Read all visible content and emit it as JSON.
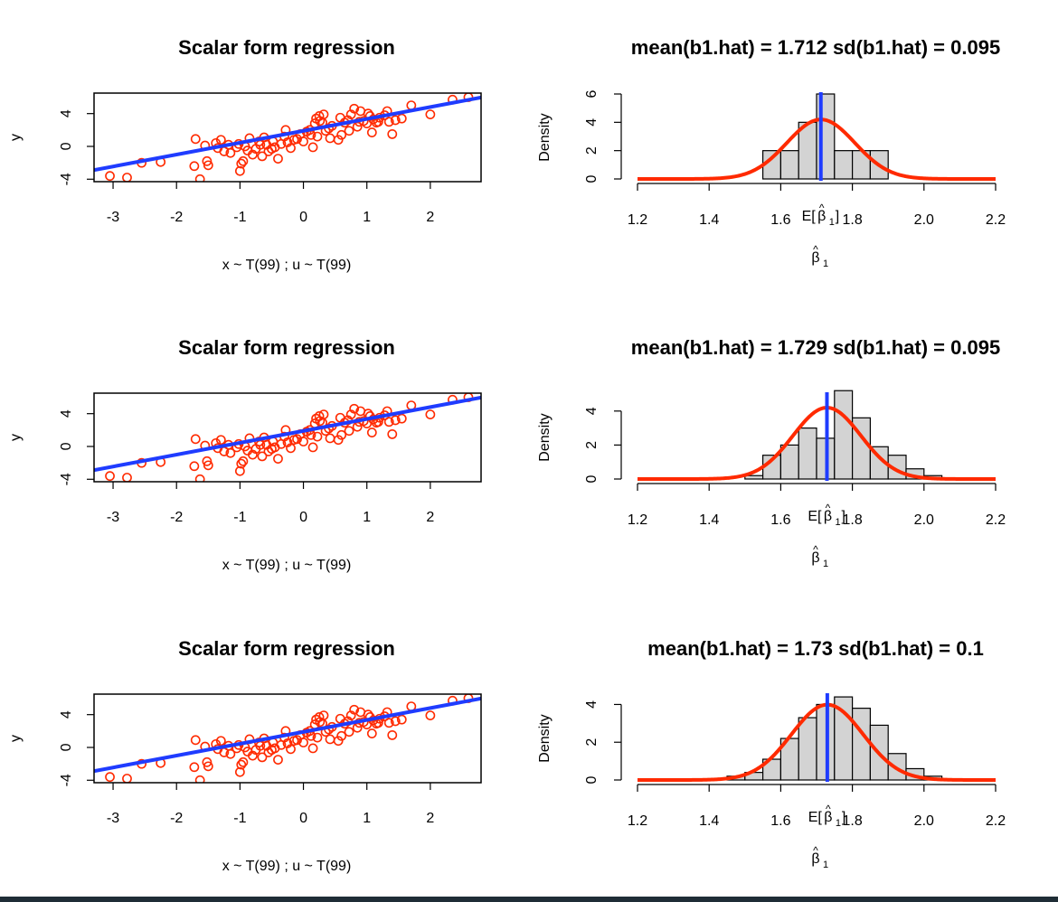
{
  "chart_data": [
    {
      "type": "scatter",
      "title": "Scalar form regression",
      "xlabel": "x ~ T(99) ; u ~ T(99)",
      "ylabel": "y",
      "xlim": [
        -3.3,
        2.8
      ],
      "ylim": [
        -4.3,
        6.5
      ],
      "xticks": [
        "-3",
        "-2",
        "-1",
        "0",
        "1",
        "2"
      ],
      "yticks": [
        "-4",
        "0",
        "4"
      ],
      "fit_line": {
        "intercept": 1.9,
        "slope": 1.45
      },
      "point_color": "#ff2a00",
      "line_color": "#1f3cff",
      "points": [
        [
          -3.05,
          -3.6
        ],
        [
          -2.78,
          -3.8
        ],
        [
          -2.55,
          -2.0
        ],
        [
          -2.25,
          -1.9
        ],
        [
          -1.72,
          -2.4
        ],
        [
          -1.7,
          0.9
        ],
        [
          -1.63,
          -4.0
        ],
        [
          -1.55,
          0.1
        ],
        [
          -1.52,
          -1.8
        ],
        [
          -1.5,
          -2.3
        ],
        [
          -1.35,
          -0.2
        ],
        [
          -1.3,
          0.8
        ],
        [
          -1.25,
          -0.6
        ],
        [
          -1.18,
          0.2
        ],
        [
          -1.15,
          -0.8
        ],
        [
          -1.05,
          -0.1
        ],
        [
          -1.02,
          0.3
        ],
        [
          -1.0,
          -3.0
        ],
        [
          -0.98,
          -2.1
        ],
        [
          -0.95,
          -1.8
        ],
        [
          -0.92,
          0.0
        ],
        [
          -0.88,
          -0.5
        ],
        [
          -0.8,
          -1.0
        ],
        [
          -0.75,
          -0.3
        ],
        [
          -0.7,
          0.6
        ],
        [
          -0.65,
          -1.2
        ],
        [
          -0.62,
          1.1
        ],
        [
          -0.58,
          0.2
        ],
        [
          -0.55,
          -0.6
        ],
        [
          -0.5,
          -0.3
        ],
        [
          -0.45,
          -0.1
        ],
        [
          -0.4,
          -1.5
        ],
        [
          -0.35,
          0.3
        ],
        [
          -0.3,
          1.2
        ],
        [
          -0.25,
          0.5
        ],
        [
          -0.2,
          -0.2
        ],
        [
          -0.15,
          0.8
        ],
        [
          -0.1,
          0.9
        ],
        [
          -0.05,
          1.5
        ],
        [
          0.0,
          0.6
        ],
        [
          0.05,
          1.8
        ],
        [
          0.1,
          2.0
        ],
        [
          0.15,
          -0.1
        ],
        [
          0.18,
          2.8
        ],
        [
          0.2,
          3.4
        ],
        [
          0.22,
          1.2
        ],
        [
          0.25,
          3.7
        ],
        [
          0.3,
          2.9
        ],
        [
          0.32,
          3.9
        ],
        [
          0.35,
          1.9
        ],
        [
          0.4,
          2.2
        ],
        [
          0.45,
          2.5
        ],
        [
          0.55,
          0.8
        ],
        [
          0.6,
          1.4
        ],
        [
          0.65,
          2.9
        ],
        [
          0.7,
          3.2
        ],
        [
          0.72,
          1.9
        ],
        [
          0.75,
          3.9
        ],
        [
          0.8,
          4.6
        ],
        [
          0.85,
          2.4
        ],
        [
          0.9,
          4.3
        ],
        [
          0.95,
          3.1
        ],
        [
          1.0,
          2.8
        ],
        [
          1.05,
          3.7
        ],
        [
          1.08,
          1.7
        ],
        [
          1.1,
          3.3
        ],
        [
          1.15,
          2.9
        ],
        [
          1.2,
          3.5
        ],
        [
          1.28,
          3.8
        ],
        [
          1.35,
          3.0
        ],
        [
          1.4,
          1.5
        ],
        [
          1.45,
          3.2
        ],
        [
          1.55,
          3.4
        ],
        [
          1.7,
          5.0
        ],
        [
          2.0,
          3.9
        ],
        [
          2.35,
          5.7
        ],
        [
          2.6,
          6.0
        ],
        [
          -0.85,
          1.0
        ],
        [
          0.42,
          1.0
        ],
        [
          1.02,
          4.0
        ],
        [
          -1.38,
          0.4
        ],
        [
          0.58,
          3.5
        ],
        [
          -0.28,
          2.0
        ],
        [
          0.12,
          1.4
        ],
        [
          0.88,
          3.0
        ],
        [
          -0.48,
          0.6
        ],
        [
          1.18,
          3.0
        ],
        [
          0.26,
          3.1
        ],
        [
          -0.68,
          0.2
        ],
        [
          1.32,
          4.3
        ]
      ]
    },
    {
      "type": "bar",
      "title": "mean(b1.hat) = 1.712  sd(b1.hat) = 0.095",
      "xlabel": "β̂1",
      "ylabel": "Density",
      "xlim": [
        1.2,
        2.2
      ],
      "ylim": [
        0,
        6
      ],
      "xticks": [
        "1.2",
        "1.4",
        "1.6",
        "1.8",
        "2.0",
        "2.2"
      ],
      "yticks": [
        "0",
        "2",
        "4",
        "6"
      ],
      "bin_edges": [
        1.55,
        1.6,
        1.65,
        1.7,
        1.75,
        1.8,
        1.85,
        1.9
      ],
      "values": [
        2,
        2,
        4,
        6,
        2,
        2,
        2
      ],
      "mean_marker": {
        "x": 1.712,
        "label": "E[β̂1]"
      },
      "density_curve": {
        "mean": 1.712,
        "sd": 0.095
      },
      "bar_color": "#d3d3d3",
      "curve_color": "#ff2a00",
      "mean_line_color": "#1f3cff"
    },
    {
      "type": "scatter",
      "title": "Scalar form regression",
      "xlabel": "x ~ T(99) ; u ~ T(99)",
      "ylabel": "y",
      "xlim": [
        -3.3,
        2.8
      ],
      "ylim": [
        -4.3,
        6.5
      ],
      "xticks": [
        "-3",
        "-2",
        "-1",
        "0",
        "1",
        "2"
      ],
      "yticks": [
        "-4",
        "0",
        "4"
      ],
      "fit_line": {
        "intercept": 1.9,
        "slope": 1.45
      },
      "point_color": "#ff2a00",
      "line_color": "#1f3cff",
      "points": [
        [
          -3.05,
          -3.6
        ],
        [
          -2.78,
          -3.8
        ],
        [
          -2.55,
          -2.0
        ],
        [
          -2.25,
          -1.9
        ],
        [
          -1.72,
          -2.4
        ],
        [
          -1.7,
          0.9
        ],
        [
          -1.63,
          -4.0
        ],
        [
          -1.55,
          0.1
        ],
        [
          -1.52,
          -1.8
        ],
        [
          -1.5,
          -2.3
        ],
        [
          -1.35,
          -0.2
        ],
        [
          -1.3,
          0.8
        ],
        [
          -1.25,
          -0.6
        ],
        [
          -1.18,
          0.2
        ],
        [
          -1.15,
          -0.8
        ],
        [
          -1.05,
          -0.1
        ],
        [
          -1.02,
          0.3
        ],
        [
          -1.0,
          -3.0
        ],
        [
          -0.98,
          -2.1
        ],
        [
          -0.95,
          -1.8
        ],
        [
          -0.92,
          0.0
        ],
        [
          -0.88,
          -0.5
        ],
        [
          -0.8,
          -1.0
        ],
        [
          -0.75,
          -0.3
        ],
        [
          -0.7,
          0.6
        ],
        [
          -0.65,
          -1.2
        ],
        [
          -0.62,
          1.1
        ],
        [
          -0.58,
          0.2
        ],
        [
          -0.55,
          -0.6
        ],
        [
          -0.5,
          -0.3
        ],
        [
          -0.45,
          -0.1
        ],
        [
          -0.4,
          -1.5
        ],
        [
          -0.35,
          0.3
        ],
        [
          -0.3,
          1.2
        ],
        [
          -0.25,
          0.5
        ],
        [
          -0.2,
          -0.2
        ],
        [
          -0.15,
          0.8
        ],
        [
          -0.1,
          0.9
        ],
        [
          -0.05,
          1.5
        ],
        [
          0.0,
          0.6
        ],
        [
          0.05,
          1.8
        ],
        [
          0.1,
          2.0
        ],
        [
          0.15,
          -0.1
        ],
        [
          0.18,
          2.8
        ],
        [
          0.2,
          3.4
        ],
        [
          0.22,
          1.2
        ],
        [
          0.25,
          3.7
        ],
        [
          0.3,
          2.9
        ],
        [
          0.32,
          3.9
        ],
        [
          0.35,
          1.9
        ],
        [
          0.4,
          2.2
        ],
        [
          0.45,
          2.5
        ],
        [
          0.55,
          0.8
        ],
        [
          0.6,
          1.4
        ],
        [
          0.65,
          2.9
        ],
        [
          0.7,
          3.2
        ],
        [
          0.72,
          1.9
        ],
        [
          0.75,
          3.9
        ],
        [
          0.8,
          4.6
        ],
        [
          0.85,
          2.4
        ],
        [
          0.9,
          4.3
        ],
        [
          0.95,
          3.1
        ],
        [
          1.0,
          2.8
        ],
        [
          1.05,
          3.7
        ],
        [
          1.08,
          1.7
        ],
        [
          1.1,
          3.3
        ],
        [
          1.15,
          2.9
        ],
        [
          1.2,
          3.5
        ],
        [
          1.28,
          3.8
        ],
        [
          1.35,
          3.0
        ],
        [
          1.4,
          1.5
        ],
        [
          1.45,
          3.2
        ],
        [
          1.55,
          3.4
        ],
        [
          1.7,
          5.0
        ],
        [
          2.0,
          3.9
        ],
        [
          2.35,
          5.7
        ],
        [
          2.6,
          6.0
        ],
        [
          -0.85,
          1.0
        ],
        [
          0.42,
          1.0
        ],
        [
          1.02,
          4.0
        ],
        [
          -1.38,
          0.4
        ],
        [
          0.58,
          3.5
        ],
        [
          -0.28,
          2.0
        ],
        [
          0.12,
          1.4
        ],
        [
          0.88,
          3.0
        ],
        [
          -0.48,
          0.6
        ],
        [
          1.18,
          3.0
        ],
        [
          0.26,
          3.1
        ],
        [
          -0.68,
          0.2
        ],
        [
          1.32,
          4.3
        ]
      ]
    },
    {
      "type": "bar",
      "title": "mean(b1.hat) = 1.729  sd(b1.hat) = 0.095",
      "xlabel": "β̂1",
      "ylabel": "Density",
      "xlim": [
        1.2,
        2.2
      ],
      "ylim": [
        0,
        5
      ],
      "xticks": [
        "1.2",
        "1.4",
        "1.6",
        "1.8",
        "2.0",
        "2.2"
      ],
      "yticks": [
        "0",
        "2",
        "4"
      ],
      "bin_edges": [
        1.5,
        1.55,
        1.6,
        1.65,
        1.7,
        1.75,
        1.8,
        1.85,
        1.9,
        1.95,
        2.0,
        2.05
      ],
      "values": [
        0.2,
        1.4,
        2.0,
        3.0,
        2.4,
        5.2,
        3.6,
        1.9,
        1.4,
        0.6,
        0.2
      ],
      "mean_marker": {
        "x": 1.729,
        "label": "E[β̂1]"
      },
      "density_curve": {
        "mean": 1.729,
        "sd": 0.095
      },
      "bar_color": "#d3d3d3",
      "curve_color": "#ff2a00",
      "mean_line_color": "#1f3cff"
    },
    {
      "type": "scatter",
      "title": "Scalar form regression",
      "xlabel": "x ~ T(99) ; u ~ T(99)",
      "ylabel": "y",
      "xlim": [
        -3.3,
        2.8
      ],
      "ylim": [
        -4.3,
        6.5
      ],
      "xticks": [
        "-3",
        "-2",
        "-1",
        "0",
        "1",
        "2"
      ],
      "yticks": [
        "-4",
        "0",
        "4"
      ],
      "fit_line": {
        "intercept": 1.9,
        "slope": 1.45
      },
      "point_color": "#ff2a00",
      "line_color": "#1f3cff",
      "points": [
        [
          -3.05,
          -3.6
        ],
        [
          -2.78,
          -3.8
        ],
        [
          -2.55,
          -2.0
        ],
        [
          -2.25,
          -1.9
        ],
        [
          -1.72,
          -2.4
        ],
        [
          -1.7,
          0.9
        ],
        [
          -1.63,
          -4.0
        ],
        [
          -1.55,
          0.1
        ],
        [
          -1.52,
          -1.8
        ],
        [
          -1.5,
          -2.3
        ],
        [
          -1.35,
          -0.2
        ],
        [
          -1.3,
          0.8
        ],
        [
          -1.25,
          -0.6
        ],
        [
          -1.18,
          0.2
        ],
        [
          -1.15,
          -0.8
        ],
        [
          -1.05,
          -0.1
        ],
        [
          -1.02,
          0.3
        ],
        [
          -1.0,
          -3.0
        ],
        [
          -0.98,
          -2.1
        ],
        [
          -0.95,
          -1.8
        ],
        [
          -0.92,
          0.0
        ],
        [
          -0.88,
          -0.5
        ],
        [
          -0.8,
          -1.0
        ],
        [
          -0.75,
          -0.3
        ],
        [
          -0.7,
          0.6
        ],
        [
          -0.65,
          -1.2
        ],
        [
          -0.62,
          1.1
        ],
        [
          -0.58,
          0.2
        ],
        [
          -0.55,
          -0.6
        ],
        [
          -0.5,
          -0.3
        ],
        [
          -0.45,
          -0.1
        ],
        [
          -0.4,
          -1.5
        ],
        [
          -0.35,
          0.3
        ],
        [
          -0.3,
          1.2
        ],
        [
          -0.25,
          0.5
        ],
        [
          -0.2,
          -0.2
        ],
        [
          -0.15,
          0.8
        ],
        [
          -0.1,
          0.9
        ],
        [
          -0.05,
          1.5
        ],
        [
          0.0,
          0.6
        ],
        [
          0.05,
          1.8
        ],
        [
          0.1,
          2.0
        ],
        [
          0.15,
          -0.1
        ],
        [
          0.18,
          2.8
        ],
        [
          0.2,
          3.4
        ],
        [
          0.22,
          1.2
        ],
        [
          0.25,
          3.7
        ],
        [
          0.3,
          2.9
        ],
        [
          0.32,
          3.9
        ],
        [
          0.35,
          1.9
        ],
        [
          0.4,
          2.2
        ],
        [
          0.45,
          2.5
        ],
        [
          0.55,
          0.8
        ],
        [
          0.6,
          1.4
        ],
        [
          0.65,
          2.9
        ],
        [
          0.7,
          3.2
        ],
        [
          0.72,
          1.9
        ],
        [
          0.75,
          3.9
        ],
        [
          0.8,
          4.6
        ],
        [
          0.85,
          2.4
        ],
        [
          0.9,
          4.3
        ],
        [
          0.95,
          3.1
        ],
        [
          1.0,
          2.8
        ],
        [
          1.05,
          3.7
        ],
        [
          1.08,
          1.7
        ],
        [
          1.1,
          3.3
        ],
        [
          1.15,
          2.9
        ],
        [
          1.2,
          3.5
        ],
        [
          1.28,
          3.8
        ],
        [
          1.35,
          3.0
        ],
        [
          1.4,
          1.5
        ],
        [
          1.45,
          3.2
        ],
        [
          1.55,
          3.4
        ],
        [
          1.7,
          5.0
        ],
        [
          2.0,
          3.9
        ],
        [
          2.35,
          5.7
        ],
        [
          2.6,
          6.0
        ],
        [
          -0.85,
          1.0
        ],
        [
          0.42,
          1.0
        ],
        [
          1.02,
          4.0
        ],
        [
          -1.38,
          0.4
        ],
        [
          0.58,
          3.5
        ],
        [
          -0.28,
          2.0
        ],
        [
          0.12,
          1.4
        ],
        [
          0.88,
          3.0
        ],
        [
          -0.48,
          0.6
        ],
        [
          1.18,
          3.0
        ],
        [
          0.26,
          3.1
        ],
        [
          -0.68,
          0.2
        ],
        [
          1.32,
          4.3
        ]
      ]
    },
    {
      "type": "bar",
      "title": "mean(b1.hat) = 1.73  sd(b1.hat) = 0.1",
      "xlabel": "β̂1",
      "ylabel": "Density",
      "xlim": [
        1.2,
        2.2
      ],
      "ylim": [
        0,
        4.5
      ],
      "xticks": [
        "1.2",
        "1.4",
        "1.6",
        "1.8",
        "2.0",
        "2.2"
      ],
      "yticks": [
        "0",
        "2",
        "4"
      ],
      "bin_edges": [
        1.45,
        1.5,
        1.55,
        1.6,
        1.65,
        1.7,
        1.75,
        1.8,
        1.85,
        1.9,
        1.95,
        2.0,
        2.05
      ],
      "values": [
        0.2,
        0.4,
        1.1,
        2.2,
        3.3,
        4.0,
        4.4,
        3.8,
        2.9,
        1.4,
        0.6,
        0.2
      ],
      "mean_marker": {
        "x": 1.73,
        "label": "E[β̂1]"
      },
      "density_curve": {
        "mean": 1.73,
        "sd": 0.1
      },
      "bar_color": "#d3d3d3",
      "curve_color": "#ff2a00",
      "mean_line_color": "#1f3cff"
    }
  ]
}
